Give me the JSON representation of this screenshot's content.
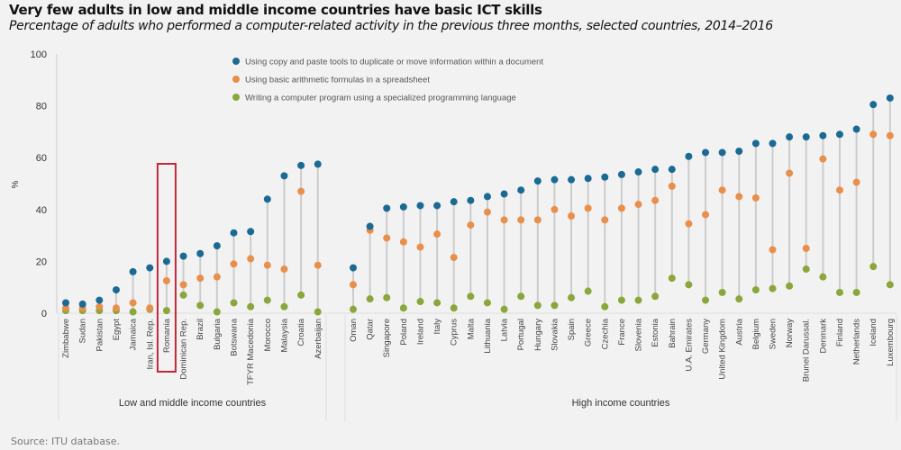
{
  "title": "Very few adults in low and middle income countries have basic ICT skills",
  "subtitle": "Percentage of adults who performed a computer-related activity in the previous three months, selected countries, 2014–2016",
  "source": "Source: ITU database.",
  "colors": {
    "copy_paste": "#1b6a94",
    "arithmetic": "#e98f4b",
    "programming": "#8ba63b",
    "stem": "#cccccc",
    "highlight": "#c0283a"
  },
  "chart_data": {
    "type": "scatter",
    "ylabel": "%",
    "ylim": [
      0,
      100
    ],
    "yticks": [
      0,
      20,
      40,
      60,
      80,
      100
    ],
    "legend_position": "top-center",
    "highlighted": "Romania",
    "series_names": [
      "Using copy and paste tools to duplicate or move information within a document",
      "Using basic arithmetic formulas in a spreadsheet",
      "Writing a computer program using a specialized programming language"
    ],
    "groups": [
      {
        "label": "Low and middle income countries",
        "countries": [
          "Zimbabwe",
          "Sudan",
          "Pakistan",
          "Egypt",
          "Jamaica",
          "Iran, Isl. Rep.",
          "Romania",
          "Dominican Rep.",
          "Brazil",
          "Bulgaria",
          "Botswana",
          "TFYR Macedonia",
          "Morocco",
          "Malaysia",
          "Croatia",
          "Azerbaijan"
        ],
        "copy_paste": [
          4,
          3.5,
          5,
          9,
          16,
          17.5,
          20,
          22,
          23,
          26,
          31,
          31.5,
          44,
          53,
          57,
          57.5
        ],
        "arithmetic": [
          2,
          2,
          2.5,
          2,
          4,
          2,
          12.5,
          11,
          13.5,
          14,
          19,
          21,
          18.5,
          17,
          47,
          18.5
        ],
        "programming": [
          1,
          1,
          1,
          1,
          0.5,
          1.5,
          1,
          7,
          3,
          0.5,
          4,
          2.5,
          5,
          2.5,
          7,
          0.5
        ]
      },
      {
        "label": "High income countries",
        "countries": [
          "Oman",
          "Qatar",
          "Singapore",
          "Poland",
          "Ireland",
          "Italy",
          "Cyprus",
          "Malta",
          "Lithuania",
          "Latvia",
          "Portugal",
          "Hungary",
          "Slovakia",
          "Spain",
          "Greece",
          "Czechia",
          "France",
          "Slovenia",
          "Estonia",
          "Bahrain",
          "U.A. Emirates",
          "Germany",
          "United Kingdom",
          "Austria",
          "Belgium",
          "Sweden",
          "Norway",
          "Brunei Darussal.",
          "Denmark",
          "Finland",
          "Netherlands",
          "Iceland",
          "Luxembourg"
        ],
        "copy_paste": [
          17.5,
          33.5,
          40.5,
          41,
          41.5,
          41.5,
          43,
          43.5,
          45,
          46,
          47.5,
          51,
          51.5,
          51.5,
          52,
          52.5,
          53.5,
          54.5,
          55.5,
          55.5,
          60.5,
          62,
          62,
          62.5,
          65.5,
          65.5,
          68,
          68,
          68.5,
          69,
          71,
          80.5,
          83
        ],
        "arithmetic": [
          11,
          32,
          29,
          27.5,
          25.5,
          30.5,
          21.5,
          34,
          39,
          36,
          36,
          36,
          40,
          37.5,
          40.5,
          36,
          40.5,
          42,
          43.5,
          49,
          34.5,
          38,
          47.5,
          45,
          44.5,
          24.5,
          54,
          25,
          59.5,
          47.5,
          50.5,
          69,
          68.5
        ],
        "programming": [
          1.5,
          5.5,
          6,
          2,
          4.5,
          4,
          2,
          6.5,
          4,
          1.5,
          6.5,
          3,
          3,
          6,
          8.5,
          2.5,
          5,
          5,
          6.5,
          13.5,
          11,
          5,
          8,
          5.5,
          9,
          9.5,
          10.5,
          17,
          14,
          8,
          8,
          18,
          11
        ]
      }
    ]
  }
}
